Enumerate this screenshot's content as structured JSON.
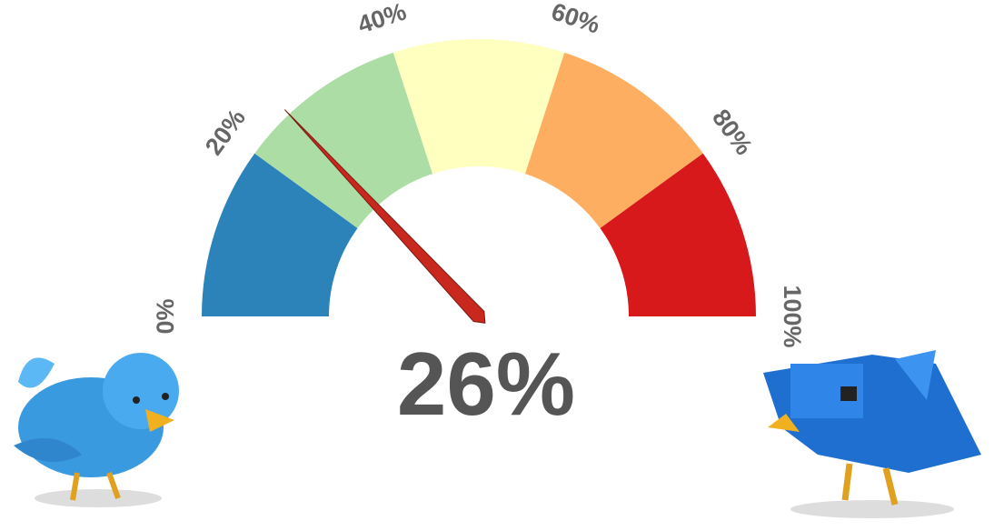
{
  "chart_data": {
    "type": "gauge",
    "values": [
      26
    ],
    "value_labels": [
      "26%"
    ],
    "needle_color": "#c8281e",
    "ylim": [
      0,
      100
    ],
    "yticks": [
      {
        "value": 0,
        "label": "0%"
      },
      {
        "value": 20,
        "label": "20%"
      },
      {
        "value": 40,
        "label": "40%"
      },
      {
        "value": 60,
        "label": "60%"
      },
      {
        "value": 80,
        "label": "80%"
      },
      {
        "value": 100,
        "label": "100%"
      }
    ],
    "bands": [
      {
        "from": 0,
        "to": 20,
        "color": "#2b83ba"
      },
      {
        "from": 20,
        "to": 40,
        "color": "#abdda4"
      },
      {
        "from": 40,
        "to": 60,
        "color": "#ffffbf"
      },
      {
        "from": 60,
        "to": 80,
        "color": "#fdae61"
      },
      {
        "from": 80,
        "to": 100,
        "color": "#d7191c"
      }
    ]
  }
}
